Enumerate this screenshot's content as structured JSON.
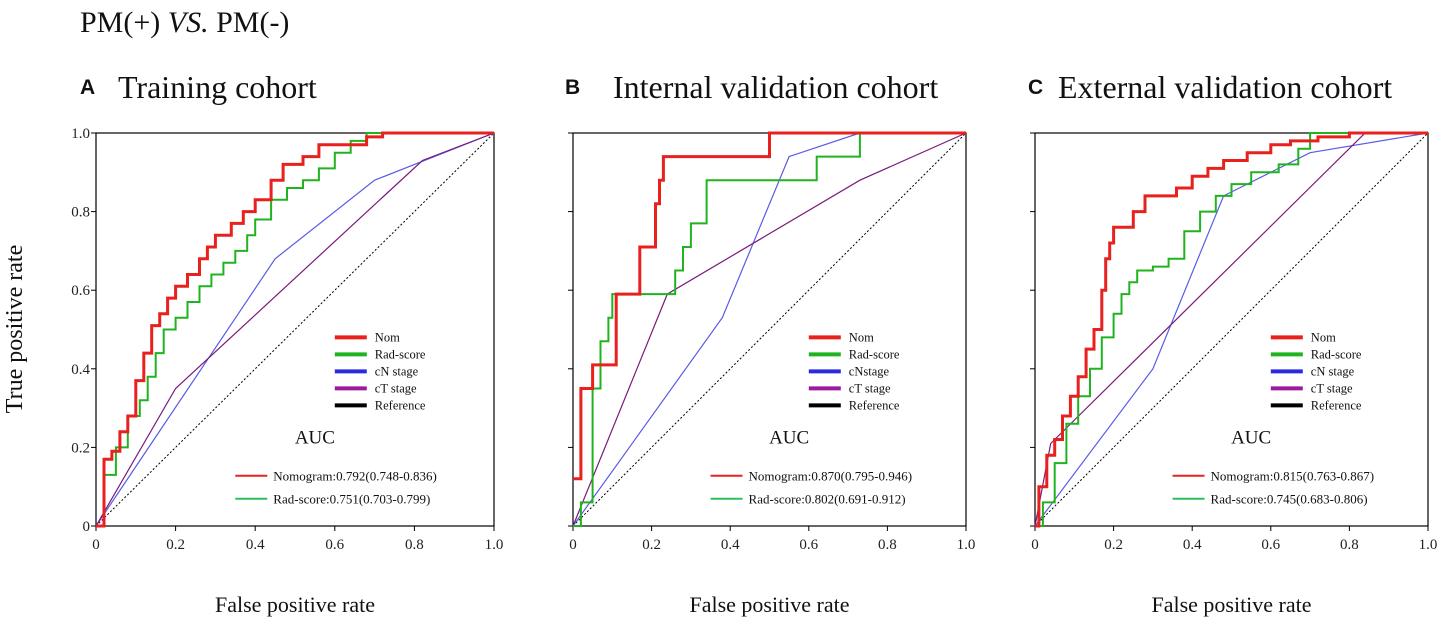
{
  "figure": {
    "title_left": "PM(+) ",
    "title_italic": "VS.",
    "title_right": " PM(-)",
    "ylabel": "True positive rate"
  },
  "chart_data": [
    {
      "type": "line",
      "panel": "A",
      "title": "Training cohort",
      "xlabel": "False positive rate",
      "ylabel": "True positive rate",
      "xlim": [
        0,
        1.0
      ],
      "ylim": [
        0,
        1.0
      ],
      "xticks": [
        "0",
        "0.2",
        "0.4",
        "0.6",
        "0.8",
        "1.0"
      ],
      "yticks": [
        "0",
        "0.2",
        "0.4",
        "0.6",
        "0.8",
        "1.0"
      ],
      "legend": {
        "position": "center-right",
        "entries": [
          {
            "label": "Nom",
            "color": "#e8201e"
          },
          {
            "label": "Rad-score",
            "color": "#1fb41f"
          },
          {
            "label": "cN stage",
            "color": "#2a2ae0"
          },
          {
            "label": "cT stage",
            "color": "#9a1aa0"
          },
          {
            "label": "Reference",
            "color": "#000000"
          }
        ]
      },
      "auc_title": "AUC",
      "auc_entries": [
        {
          "label": "Nomogram:0.792(0.748-0.836)",
          "color": "#e8201e"
        },
        {
          "label": "Rad-score:0.751(0.703-0.799)",
          "color": "#2cc05a"
        }
      ],
      "series": [
        {
          "name": "Nom",
          "color": "#e8201e",
          "width": 3,
          "step": true,
          "x": [
            0,
            0.02,
            0.04,
            0.06,
            0.08,
            0.1,
            0.12,
            0.14,
            0.16,
            0.18,
            0.2,
            0.23,
            0.26,
            0.28,
            0.3,
            0.34,
            0.37,
            0.4,
            0.44,
            0.47,
            0.52,
            0.56,
            0.62,
            0.68,
            0.72,
            1.0
          ],
          "y": [
            0,
            0.17,
            0.19,
            0.24,
            0.28,
            0.37,
            0.44,
            0.51,
            0.54,
            0.58,
            0.61,
            0.64,
            0.68,
            0.71,
            0.74,
            0.77,
            0.8,
            0.83,
            0.88,
            0.92,
            0.94,
            0.97,
            0.97,
            0.99,
            1.0,
            1.0
          ]
        },
        {
          "name": "Rad-score",
          "color": "#1fb41f",
          "width": 2,
          "step": true,
          "x": [
            0,
            0.02,
            0.05,
            0.08,
            0.11,
            0.13,
            0.15,
            0.17,
            0.2,
            0.23,
            0.26,
            0.29,
            0.32,
            0.35,
            0.38,
            0.4,
            0.44,
            0.48,
            0.52,
            0.56,
            0.6,
            0.64,
            0.68,
            1.0
          ],
          "y": [
            0,
            0.13,
            0.2,
            0.28,
            0.32,
            0.38,
            0.44,
            0.5,
            0.53,
            0.57,
            0.61,
            0.64,
            0.67,
            0.7,
            0.74,
            0.78,
            0.83,
            0.86,
            0.88,
            0.91,
            0.95,
            0.98,
            1.0,
            1.0
          ]
        },
        {
          "name": "cN stage",
          "color": "#5a5ae6",
          "width": 1.2,
          "step": false,
          "x": [
            0,
            0.45,
            0.7,
            1.0
          ],
          "y": [
            0,
            0.68,
            0.88,
            1.0
          ]
        },
        {
          "name": "cT stage",
          "color": "#7a1a7a",
          "width": 1.2,
          "step": false,
          "x": [
            0,
            0.2,
            0.82,
            1.0
          ],
          "y": [
            0,
            0.35,
            0.93,
            1.0
          ]
        },
        {
          "name": "Reference",
          "color": "#000000",
          "width": 1,
          "step": false,
          "dashed": true,
          "x": [
            0,
            1.0
          ],
          "y": [
            0,
            1.0
          ]
        }
      ]
    },
    {
      "type": "line",
      "panel": "B",
      "title": "Internal validation cohort",
      "xlabel": "False positive rate",
      "ylabel": "True positive rate",
      "xlim": [
        0,
        1.0
      ],
      "ylim": [
        0,
        1.0
      ],
      "xticks": [
        "0",
        "0.2",
        "0.4",
        "0.6",
        "0.8",
        "1.0"
      ],
      "yticks": [],
      "legend": {
        "position": "center-right",
        "entries": [
          {
            "label": "Nom",
            "color": "#e8201e"
          },
          {
            "label": "Rad-score",
            "color": "#1fb41f"
          },
          {
            "label": "cNstage",
            "color": "#2a2ae0"
          },
          {
            "label": "cT stage",
            "color": "#9a1aa0"
          },
          {
            "label": "Reference",
            "color": "#000000"
          }
        ]
      },
      "auc_title": "AUC",
      "auc_entries": [
        {
          "label": "Nomogram:0.870(0.795-0.946)",
          "color": "#e8201e"
        },
        {
          "label": "Rad-score:0.802(0.691-0.912)",
          "color": "#2cc05a"
        }
      ],
      "series": [
        {
          "name": "Nom",
          "color": "#e8201e",
          "width": 3,
          "step": true,
          "x": [
            0,
            0.02,
            0.05,
            0.07,
            0.11,
            0.17,
            0.21,
            0.22,
            0.23,
            0.25,
            0.5,
            1.0
          ],
          "y": [
            0.12,
            0.35,
            0.41,
            0.41,
            0.59,
            0.71,
            0.82,
            0.88,
            0.94,
            0.94,
            1.0,
            1.0
          ]
        },
        {
          "name": "Rad-score",
          "color": "#1fb41f",
          "width": 2,
          "step": true,
          "x": [
            0,
            0.02,
            0.05,
            0.07,
            0.09,
            0.1,
            0.12,
            0.26,
            0.28,
            0.3,
            0.34,
            0.62,
            0.73,
            1.0
          ],
          "y": [
            0,
            0.06,
            0.35,
            0.47,
            0.53,
            0.59,
            0.59,
            0.65,
            0.71,
            0.77,
            0.88,
            0.94,
            1.0,
            1.0
          ]
        },
        {
          "name": "cN stage",
          "color": "#5a5ae6",
          "width": 1.2,
          "step": false,
          "x": [
            0,
            0.38,
            0.55,
            0.73,
            1.0
          ],
          "y": [
            0,
            0.53,
            0.94,
            1.0,
            1.0
          ]
        },
        {
          "name": "cT stage",
          "color": "#7a1a7a",
          "width": 1.2,
          "step": false,
          "x": [
            0,
            0.24,
            0.73,
            1.0
          ],
          "y": [
            0,
            0.59,
            0.88,
            1.0
          ]
        },
        {
          "name": "Reference",
          "color": "#000000",
          "width": 1,
          "step": false,
          "dashed": true,
          "x": [
            0,
            1.0
          ],
          "y": [
            0,
            1.0
          ]
        }
      ]
    },
    {
      "type": "line",
      "panel": "C",
      "title": "External validation cohort",
      "xlabel": "False positive rate",
      "ylabel": "True positive rate",
      "xlim": [
        0,
        1.0
      ],
      "ylim": [
        0,
        1.0
      ],
      "xticks": [
        "0",
        "0.2",
        "0.4",
        "0.6",
        "0.8",
        "1.0"
      ],
      "yticks": [],
      "legend": {
        "position": "center-right",
        "entries": [
          {
            "label": "Nom",
            "color": "#e8201e"
          },
          {
            "label": "Rad-score",
            "color": "#1fb41f"
          },
          {
            "label": "cN stage",
            "color": "#2a2ae0"
          },
          {
            "label": "cT stage",
            "color": "#9a1aa0"
          },
          {
            "label": "Reference",
            "color": "#000000"
          }
        ]
      },
      "auc_title": "AUC",
      "auc_entries": [
        {
          "label": "Nomogram:0.815(0.763-0.867)",
          "color": "#e8201e"
        },
        {
          "label": "Rad-score:0.745(0.683-0.806)",
          "color": "#2cc05a"
        }
      ],
      "series": [
        {
          "name": "Nom",
          "color": "#e8201e",
          "width": 3,
          "step": true,
          "x": [
            0,
            0.01,
            0.03,
            0.05,
            0.07,
            0.09,
            0.11,
            0.13,
            0.15,
            0.17,
            0.18,
            0.19,
            0.2,
            0.22,
            0.25,
            0.28,
            0.32,
            0.36,
            0.4,
            0.44,
            0.48,
            0.54,
            0.6,
            0.65,
            0.72,
            0.8,
            1.0
          ],
          "y": [
            0,
            0.1,
            0.18,
            0.22,
            0.28,
            0.33,
            0.38,
            0.45,
            0.5,
            0.6,
            0.68,
            0.72,
            0.76,
            0.76,
            0.8,
            0.84,
            0.84,
            0.86,
            0.89,
            0.91,
            0.93,
            0.95,
            0.97,
            0.98,
            0.99,
            1.0,
            1.0
          ]
        },
        {
          "name": "Rad-score",
          "color": "#1fb41f",
          "width": 2,
          "step": true,
          "x": [
            0,
            0.02,
            0.05,
            0.08,
            0.11,
            0.14,
            0.17,
            0.2,
            0.22,
            0.24,
            0.26,
            0.3,
            0.34,
            0.38,
            0.42,
            0.46,
            0.5,
            0.55,
            0.62,
            0.67,
            0.7,
            1.0
          ],
          "y": [
            0,
            0.06,
            0.16,
            0.26,
            0.33,
            0.4,
            0.48,
            0.54,
            0.59,
            0.62,
            0.65,
            0.66,
            0.68,
            0.75,
            0.8,
            0.84,
            0.87,
            0.9,
            0.92,
            0.96,
            1.0,
            1.0
          ]
        },
        {
          "name": "cN stage",
          "color": "#5a5ae6",
          "width": 1.2,
          "step": false,
          "x": [
            0,
            0.3,
            0.48,
            0.7,
            1.0
          ],
          "y": [
            0,
            0.4,
            0.84,
            0.95,
            1.0
          ]
        },
        {
          "name": "cT stage",
          "color": "#7a1a7a",
          "width": 1.2,
          "step": false,
          "x": [
            0,
            0.04,
            0.84,
            1.0
          ],
          "y": [
            0,
            0.21,
            1.0,
            1.0
          ]
        },
        {
          "name": "Reference",
          "color": "#000000",
          "width": 1,
          "step": false,
          "dashed": true,
          "x": [
            0,
            1.0
          ],
          "y": [
            0,
            1.0
          ]
        }
      ]
    }
  ]
}
